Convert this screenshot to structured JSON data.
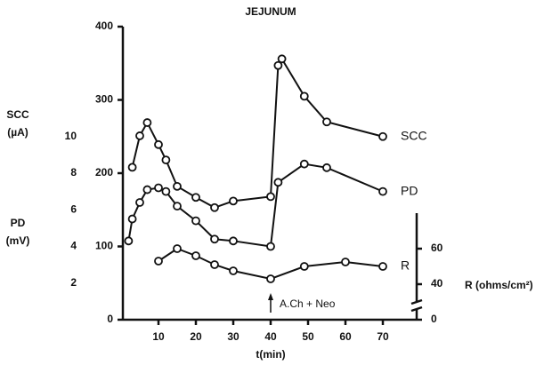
{
  "chart_data": {
    "type": "line",
    "title": "JEJUNUM",
    "xlabel": "t(min)",
    "ylabel": [
      "SCC",
      "(µA)"
    ],
    "y3label": [
      "PD",
      "(mV)"
    ],
    "y2label": "R (ohms/cm²)",
    "xlim": [
      0,
      78
    ],
    "xticks": [
      10,
      20,
      30,
      40,
      50,
      60,
      70
    ],
    "ylim": [
      0,
      400
    ],
    "yticks": [
      0,
      100,
      200,
      300,
      400
    ],
    "y3lim": [
      0,
      16
    ],
    "y3ticks": [
      2,
      4,
      6,
      8,
      10
    ],
    "y2lim": [
      20,
      185
    ],
    "y2ticks": [
      0,
      40,
      60
    ],
    "y2break": true,
    "series": [
      {
        "name": "SCC",
        "color": "#111111",
        "axis": "y",
        "x": [
          3,
          5,
          7,
          10,
          12,
          15,
          20,
          25,
          30,
          40,
          42,
          43,
          49,
          55,
          70
        ],
        "values": [
          208,
          251,
          269,
          239,
          218,
          182,
          167,
          153,
          162,
          168,
          347,
          356,
          305,
          270,
          250
        ]
      },
      {
        "name": "PD",
        "color": "#111111",
        "axis": "y3",
        "x": [
          2,
          3,
          5,
          7,
          10,
          12,
          15,
          20,
          25,
          30,
          40,
          42,
          49,
          55,
          70
        ],
        "values": [
          4.3,
          5.5,
          6.4,
          7.1,
          7.2,
          7.0,
          6.2,
          5.4,
          4.4,
          4.3,
          4.0,
          7.5,
          8.5,
          8.3,
          7.0
        ]
      },
      {
        "name": "R",
        "color": "#111111",
        "axis": "y2",
        "x": [
          10,
          15,
          20,
          25,
          30,
          40,
          49,
          60,
          70
        ],
        "values": [
          53,
          60,
          56,
          51,
          47.5,
          43,
          50,
          52.5,
          50
        ]
      }
    ],
    "annotation": {
      "text": "A.Ch + Neo",
      "x": 40
    }
  }
}
